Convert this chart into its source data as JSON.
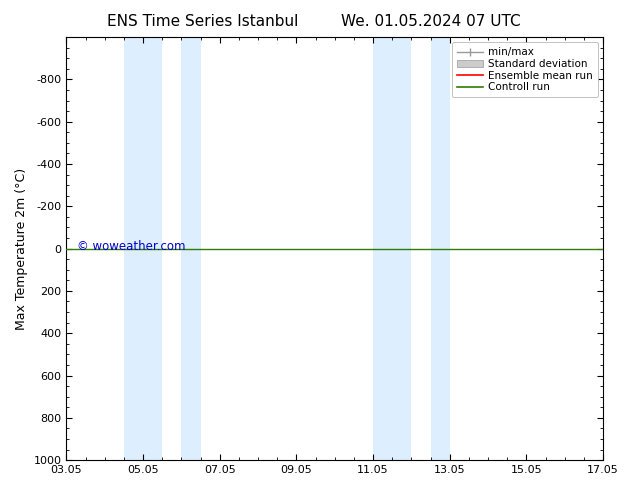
{
  "title_left": "ENS Time Series Istanbul",
  "title_right": "We. 01.05.2024 07 UTC",
  "ylabel": "Max Temperature 2m (°C)",
  "ylim_top": -1000,
  "ylim_bottom": 1000,
  "yticks": [
    -800,
    -600,
    -400,
    -200,
    0,
    200,
    400,
    600,
    800,
    1000
  ],
  "xtick_labels": [
    "03.05",
    "05.05",
    "07.05",
    "09.05",
    "11.05",
    "13.05",
    "15.05",
    "17.05"
  ],
  "xtick_positions": [
    0,
    2,
    4,
    6,
    8,
    10,
    12,
    14
  ],
  "xlim": [
    0,
    14
  ],
  "shaded_bands": [
    [
      1.5,
      2.5
    ],
    [
      3.0,
      3.5
    ],
    [
      8.0,
      9.0
    ],
    [
      9.5,
      10.0
    ]
  ],
  "shaded_color": "#ddeeff",
  "control_run_y": 0,
  "control_run_color": "#2e7d00",
  "ensemble_mean_color": "#ff0000",
  "minmax_color": "#999999",
  "stddev_color": "#cccccc",
  "watermark": "© woweather.com",
  "watermark_color": "#0000cc",
  "background_color": "#ffffff",
  "legend_entries": [
    "min/max",
    "Standard deviation",
    "Ensemble mean run",
    "Controll run"
  ],
  "legend_line_colors": [
    "#999999",
    "#cccccc",
    "#ff0000",
    "#2e7d00"
  ],
  "title_fontsize": 11,
  "tick_fontsize": 8,
  "ylabel_fontsize": 9
}
